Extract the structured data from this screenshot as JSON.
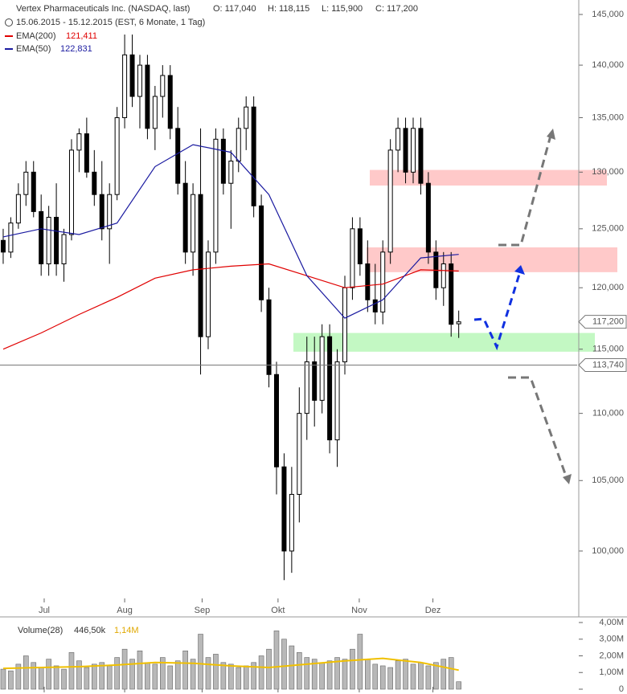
{
  "chart_data": {
    "type": "candlestick",
    "title": "Vertex Pharmaceuticals Inc. (NASDAQ, last)",
    "quote": [
      "O: 117,040",
      "H: 118,115",
      "L: 115,900",
      "C: 117,200"
    ],
    "subtitle": "15.06.2015 - 15.12.2015 (EST, 6 Monate, 1 Tag)",
    "open": [
      124,
      123,
      125.5,
      128,
      130,
      126.5,
      122,
      126,
      122,
      124.5,
      132,
      133.5,
      130,
      128,
      125,
      128,
      135,
      141,
      137,
      140,
      134,
      137,
      139,
      134,
      129,
      123,
      128,
      116,
      123,
      133,
      129,
      131,
      134,
      136,
      127,
      119,
      113,
      106,
      100,
      104,
      110,
      114,
      111,
      116,
      108,
      114,
      120,
      125,
      122,
      119,
      118,
      123,
      132,
      134,
      130,
      134,
      129,
      123,
      120,
      122,
      117.04
    ],
    "high": [
      125,
      126,
      129,
      131,
      131,
      128,
      127,
      129,
      125,
      133,
      134,
      135,
      132,
      131,
      129,
      136,
      143,
      143,
      141,
      141,
      138,
      140,
      140,
      136,
      131,
      129,
      134,
      124,
      134,
      134,
      132,
      135,
      137,
      137,
      128,
      120,
      114,
      107,
      106,
      112,
      116,
      116,
      117,
      117,
      115,
      121,
      126,
      126,
      124,
      122,
      124,
      133,
      135,
      135,
      135,
      135,
      130,
      124,
      123,
      123,
      118.115
    ],
    "low": [
      122,
      122.5,
      125,
      127,
      126,
      121,
      121,
      121,
      120.5,
      124,
      130,
      129.5,
      127,
      124,
      122,
      127.5,
      134,
      136,
      134,
      133,
      132,
      135,
      133,
      128,
      122,
      121,
      113,
      115,
      122,
      128,
      125,
      130,
      132,
      126,
      118,
      112,
      104,
      98,
      98.5,
      102,
      108,
      109,
      110,
      107,
      106,
      113,
      119,
      121,
      118,
      117,
      117,
      122,
      130,
      129,
      129,
      128,
      122,
      119,
      118.5,
      116,
      115.9
    ],
    "close": [
      123,
      125.5,
      128,
      130,
      126.5,
      122,
      126,
      122,
      124.5,
      132,
      133.5,
      130,
      128,
      125,
      128,
      135,
      141,
      137,
      140,
      134,
      137,
      139,
      134,
      129,
      123,
      128,
      116,
      123,
      133,
      129,
      131,
      134,
      136,
      127,
      119,
      113,
      106,
      100,
      104,
      110,
      114,
      111,
      116,
      108,
      114,
      120,
      125,
      122,
      119,
      118,
      123,
      132,
      134,
      130,
      134,
      129,
      123,
      120,
      122,
      117,
      117.2
    ],
    "xlim": [
      -0.42,
      75.6
    ],
    "xticks": [
      {
        "value": 5.4,
        "label": "Jul"
      },
      {
        "value": 16,
        "label": "Aug"
      },
      {
        "value": 26.2,
        "label": "Sep"
      },
      {
        "value": 36.2,
        "label": "Okt"
      },
      {
        "value": 46.9,
        "label": "Nov"
      },
      {
        "value": 56.6,
        "label": "Dez"
      }
    ],
    "ylim": [
      96.77,
      146.46
    ],
    "log": true,
    "yticks": [
      {
        "value": 100,
        "label": "100,000"
      },
      {
        "value": 105,
        "label": "105,000"
      },
      {
        "value": 110,
        "label": "110,000"
      },
      {
        "value": 115,
        "label": "115,000"
      },
      {
        "value": 120,
        "label": "120,000"
      },
      {
        "value": 125,
        "label": "125,000"
      },
      {
        "value": 130,
        "label": "130,000"
      },
      {
        "value": 135,
        "label": "135,000"
      },
      {
        "value": 140,
        "label": "140,000"
      },
      {
        "value": 145,
        "label": "145,000"
      }
    ],
    "lines": [
      {
        "name": "EMA(200)",
        "value_label": "121,411",
        "color": "#e00000",
        "x": [
          0,
          5,
          10,
          15,
          20,
          25,
          30,
          35,
          40,
          45,
          50,
          55,
          60
        ],
        "values": [
          115.0,
          116.3,
          117.8,
          119.2,
          120.8,
          121.5,
          121.8,
          122.0,
          121.0,
          120.0,
          120.3,
          121.5,
          121.4
        ]
      },
      {
        "name": "EMA(50)",
        "value_label": "122,831",
        "color": "#1a1aa0",
        "x": [
          0,
          5,
          10,
          15,
          20,
          25,
          30,
          35,
          40,
          45,
          50,
          55,
          60
        ],
        "values": [
          124.3,
          125.0,
          124.5,
          125.5,
          130.5,
          132.5,
          131.8,
          128.0,
          121.0,
          117.5,
          119.0,
          122.5,
          122.8
        ]
      }
    ],
    "zones": [
      {
        "low": 128.8,
        "high": 130.2,
        "color": "#ffc0c0"
      },
      {
        "low": 121.3,
        "high": 123.4,
        "color": "#ffc0c0"
      },
      {
        "low": 114.8,
        "high": 116.3,
        "color": "#b8f7b8"
      }
    ],
    "price_markers": [
      {
        "value": 117.2,
        "label": "117,200"
      },
      {
        "value": 113.74,
        "label": "113,740"
      }
    ],
    "volume": {
      "name": "Volume(28)",
      "value_label": "446,50k",
      "avg_label": "1,14M",
      "color": "#b8b8b8",
      "values": [
        1.2,
        1.1,
        1.5,
        2.0,
        1.6,
        1.3,
        1.8,
        1.4,
        1.2,
        2.2,
        1.7,
        1.3,
        1.5,
        1.6,
        1.4,
        1.9,
        2.4,
        1.8,
        2.3,
        1.6,
        1.5,
        1.9,
        1.4,
        1.7,
        2.3,
        1.8,
        3.3,
        1.9,
        2.1,
        1.6,
        1.5,
        1.3,
        1.4,
        1.6,
        2.0,
        2.4,
        3.5,
        3.0,
        2.6,
        2.2,
        1.9,
        1.8,
        1.6,
        1.7,
        1.9,
        1.8,
        2.4,
        3.3,
        1.8,
        1.5,
        1.4,
        1.3,
        1.7,
        1.8,
        1.5,
        1.6,
        1.4,
        1.6,
        1.8,
        1.9,
        0.4465
      ],
      "avg": {
        "color": "#f0c000",
        "x": [
          0,
          5,
          10,
          15,
          20,
          25,
          30,
          35,
          40,
          45,
          50,
          55,
          60
        ],
        "values": [
          1.25,
          1.3,
          1.35,
          1.45,
          1.6,
          1.55,
          1.4,
          1.3,
          1.5,
          1.7,
          1.85,
          1.6,
          1.14
        ]
      },
      "ylim": [
        0,
        4
      ],
      "yticks": [
        {
          "value": 0,
          "label": "0"
        },
        {
          "value": 1,
          "label": "1,00M"
        },
        {
          "value": 2,
          "label": "2,00M"
        },
        {
          "value": 3,
          "label": "3,00M"
        },
        {
          "value": 4,
          "label": "4,00M"
        }
      ]
    }
  }
}
